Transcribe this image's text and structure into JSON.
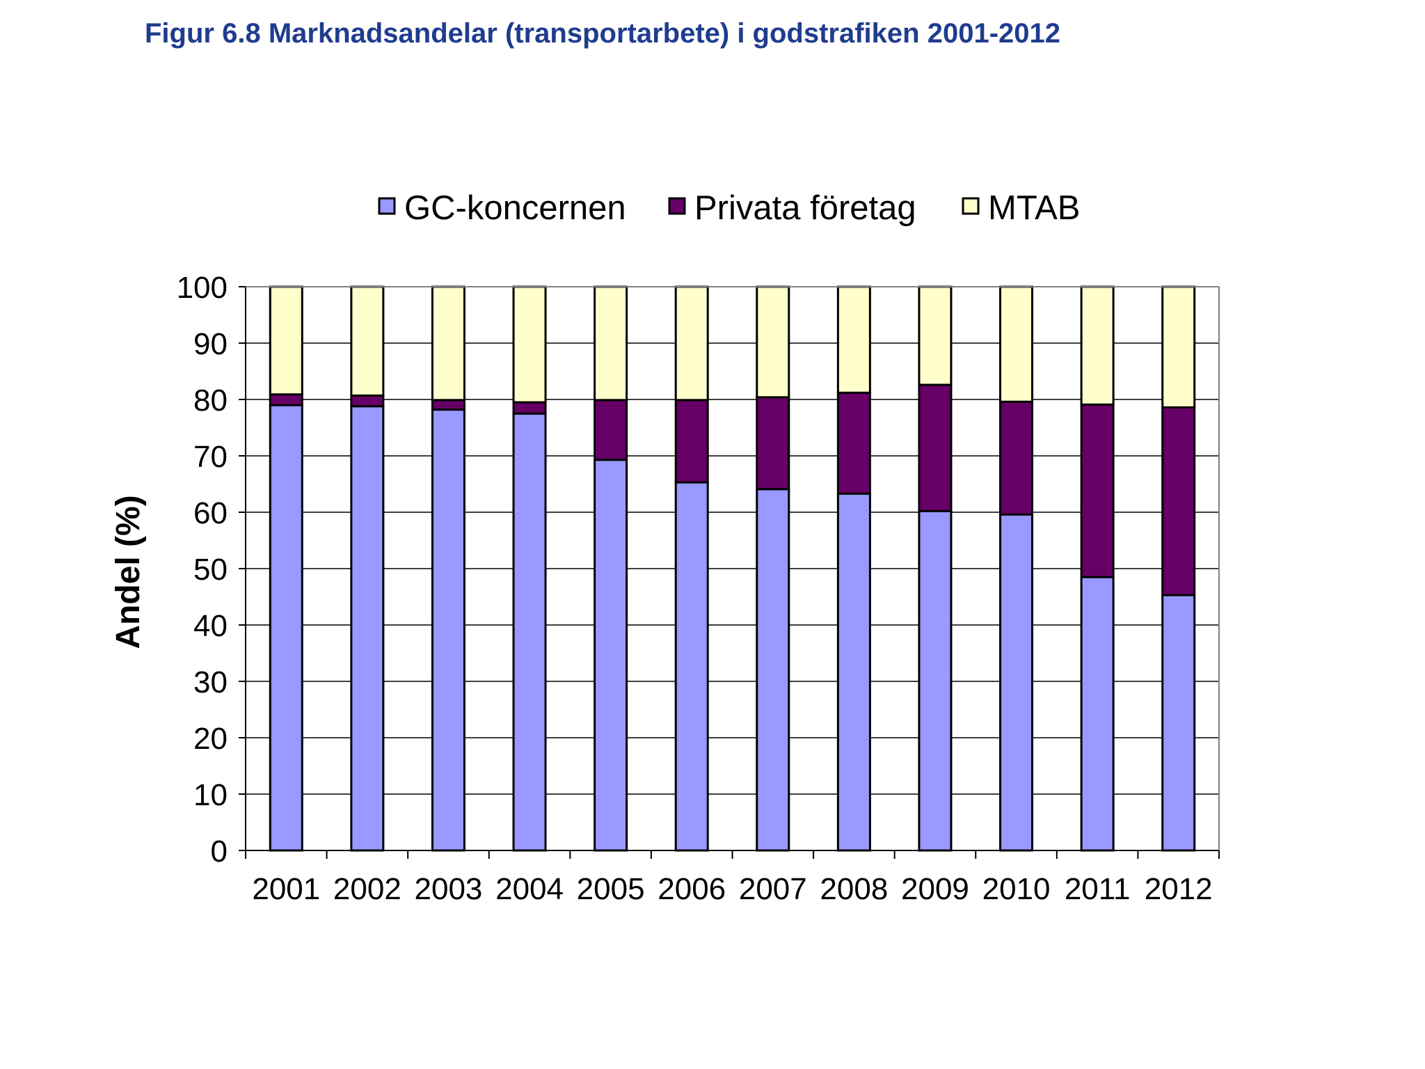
{
  "title": "Figur 6.8 Marknadsandelar (transportarbete) i godstrafiken 2001-2012",
  "chart_data": {
    "type": "bar",
    "stacked": true,
    "categories": [
      "2001",
      "2002",
      "2003",
      "2004",
      "2005",
      "2006",
      "2007",
      "2008",
      "2009",
      "2010",
      "2011",
      "2012"
    ],
    "series": [
      {
        "name": "GC-koncernen",
        "color": "#9999ff",
        "values": [
          79,
          78.8,
          78.2,
          77.5,
          69.3,
          65.3,
          64.1,
          63.3,
          60.2,
          59.6,
          48.5,
          45.3
        ]
      },
      {
        "name": "Privata företag",
        "color": "#660066",
        "values": [
          1.9,
          1.9,
          1.7,
          2.0,
          10.6,
          14.6,
          16.3,
          17.9,
          22.4,
          20.0,
          30.6,
          33.3
        ]
      },
      {
        "name": "MTAB",
        "color": "#ffffcc",
        "values": [
          19.1,
          19.3,
          20.1,
          20.5,
          20.1,
          20.1,
          19.6,
          18.8,
          17.4,
          20.4,
          20.9,
          21.4
        ]
      }
    ],
    "xlabel": "",
    "ylabel": "Andel (%)",
    "ylim": [
      0,
      100
    ],
    "yticks": [
      "0",
      "10",
      "20",
      "30",
      "40",
      "50",
      "60",
      "70",
      "80",
      "90",
      "100"
    ],
    "grid": true,
    "legend": "top"
  }
}
